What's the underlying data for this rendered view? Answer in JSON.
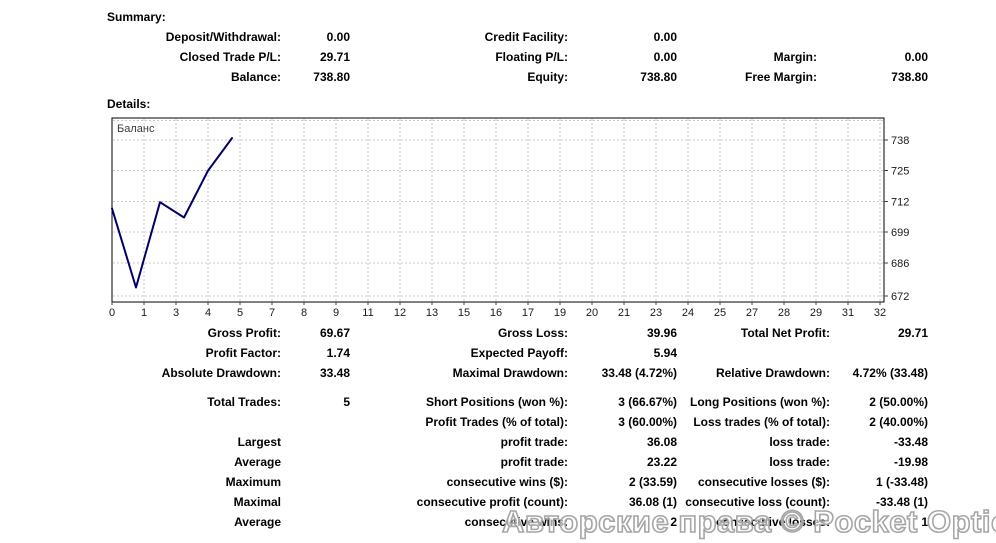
{
  "summary": {
    "heading": "Summary:",
    "rows": [
      [
        "Deposit/Withdrawal:",
        "0.00",
        "Credit Facility:",
        "0.00",
        "",
        ""
      ],
      [
        "Closed Trade P/L:",
        "29.71",
        "Floating P/L:",
        "0.00",
        "Margin:",
        "0.00"
      ],
      [
        "Balance:",
        "738.80",
        "Equity:",
        "738.80",
        "Free Margin:",
        "738.80"
      ]
    ]
  },
  "details": {
    "heading": "Details:"
  },
  "chart_data": {
    "type": "line",
    "title": "Баланс",
    "x": [
      0,
      1,
      2,
      3,
      4,
      5
    ],
    "values": [
      709.09,
      675.61,
      711.69,
      705.21,
      725.0,
      738.8
    ],
    "x_tick_labels": [
      "0",
      "1",
      "3",
      "4",
      "5",
      "7",
      "8",
      "9",
      "11",
      "12",
      "13",
      "15",
      "16",
      "17",
      "19",
      "20",
      "21",
      "23",
      "24",
      "25",
      "27",
      "28",
      "29",
      "31",
      "32"
    ],
    "y_ticks": [
      738,
      725,
      712,
      699,
      686,
      672
    ],
    "xlim": [
      0,
      32
    ],
    "ylim": [
      669.5,
      747.3
    ],
    "line_color": "#000066",
    "grid": "dashed-lightgray",
    "legend_position": "top-left-inside",
    "xlabel": "",
    "ylabel": ""
  },
  "stats": {
    "groups": [
      [
        [
          "Gross Profit:",
          "69.67",
          "Gross Loss:",
          "39.96",
          "Total Net Profit:",
          "29.71"
        ],
        [
          "Profit Factor:",
          "1.74",
          "Expected Payoff:",
          "5.94",
          "",
          ""
        ],
        [
          "Absolute Drawdown:",
          "33.48",
          "Maximal Drawdown:",
          "33.48 (4.72%)",
          "Relative Drawdown:",
          "4.72% (33.48)"
        ]
      ],
      [
        [
          "Total Trades:",
          "5",
          "Short Positions (won %):",
          "3 (66.67%)",
          "Long Positions (won %):",
          "2 (50.00%)"
        ],
        [
          "",
          "",
          "Profit Trades (% of total):",
          "3 (60.00%)",
          "Loss trades (% of total):",
          "2 (40.00%)"
        ],
        [
          "Largest",
          "",
          "profit trade:",
          "36.08",
          "loss trade:",
          "-33.48"
        ],
        [
          "Average",
          "",
          "profit trade:",
          "23.22",
          "loss trade:",
          "-19.98"
        ],
        [
          "Maximum",
          "",
          "consecutive wins ($):",
          "2 (33.59)",
          "consecutive losses ($):",
          "1 (-33.48)"
        ],
        [
          "Maximal",
          "",
          "consecutive profit (count):",
          "36.08 (1)",
          "consecutive loss (count):",
          "-33.48 (1)"
        ],
        [
          "Average",
          "",
          "consecutive wins:",
          "2",
          "consecutive losses:",
          "1"
        ]
      ]
    ]
  },
  "watermark": {
    "text": "Авторские права © Pocket Option"
  }
}
